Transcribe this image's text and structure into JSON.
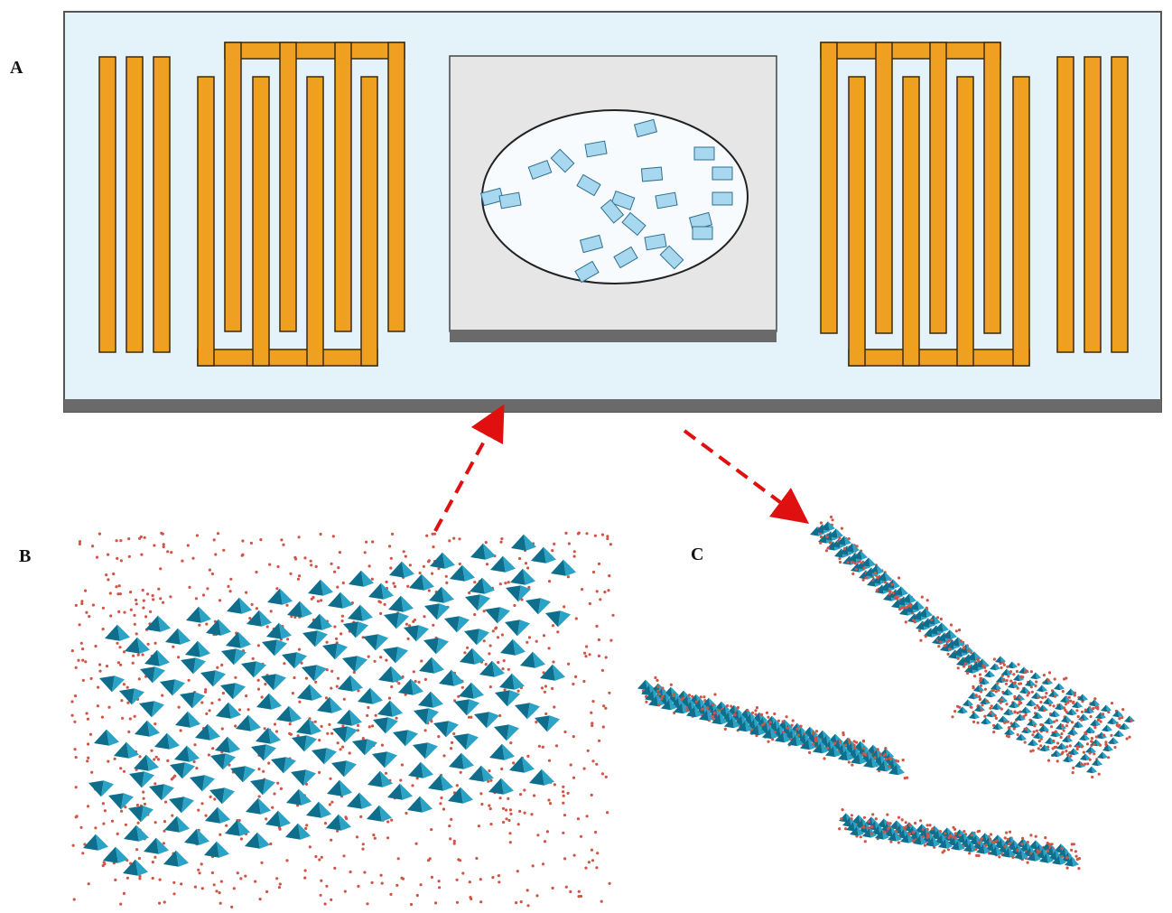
{
  "panels": {
    "a": {
      "label": "A"
    },
    "b": {
      "label": "B"
    },
    "c": {
      "label": "C"
    }
  },
  "colors": {
    "substrate_face": "#e4f2f9",
    "substrate_edge": "#6a6a6a",
    "electrode": "#f0a020",
    "electrode_edge": "#3a2a10",
    "sample_face": "#e6e6e6",
    "sample_edge": "#666666",
    "flake": "#a8d8f0",
    "arrow": "#e01010",
    "tetra_dark": "#0f6e8c",
    "tetra_light": "#2aa3c6",
    "atom": "#d05545"
  },
  "icons": [
    "interdigitated-electrode",
    "dashed-arrow",
    "tetrahedral-lattice"
  ]
}
